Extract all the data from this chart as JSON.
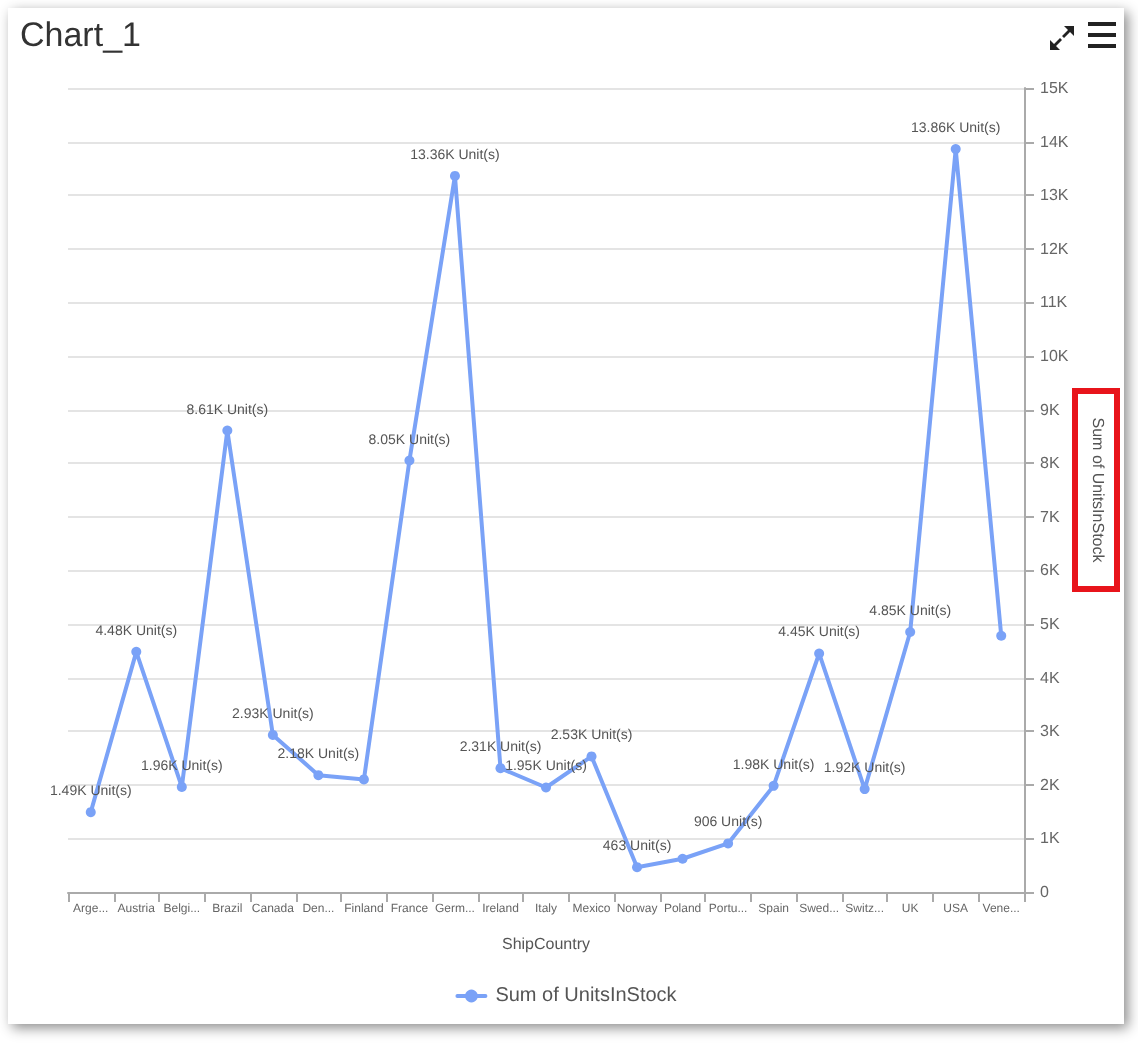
{
  "chart_data": {
    "type": "line",
    "title": "Chart_1",
    "xlabel": "ShipCountry",
    "ylabel": "Sum of UnitsInStock",
    "categories": [
      "Arge...",
      "Austria",
      "Belgi...",
      "Brazil",
      "Canada",
      "Den...",
      "Finland",
      "France",
      "Germ...",
      "Ireland",
      "Italy",
      "Mexico",
      "Norway",
      "Poland",
      "Portu...",
      "Spain",
      "Swed...",
      "Switz...",
      "UK",
      "USA",
      "Vene..."
    ],
    "series": [
      {
        "name": "Sum of UnitsInStock",
        "color": "#7aa2f7",
        "values": [
          1490,
          4480,
          1960,
          8610,
          2930,
          2180,
          2100,
          8050,
          13360,
          2310,
          1950,
          2530,
          463,
          620,
          906,
          1980,
          4450,
          1920,
          4850,
          13860,
          4780
        ],
        "value_labels": [
          "1.49K Unit(s)",
          "4.48K Unit(s)",
          "1.96K Unit(s)",
          "8.61K Unit(s)",
          "2.93K Unit(s)",
          "2.18K Unit(s)",
          null,
          "8.05K Unit(s)",
          "13.36K Unit(s)",
          "2.31K Unit(s)",
          "1.95K Unit(s)",
          "2.53K Unit(s)",
          "463 Unit(s)",
          null,
          "906 Unit(s)",
          "1.98K Unit(s)",
          "4.45K Unit(s)",
          "1.92K Unit(s)",
          "4.85K Unit(s)",
          "13.86K Unit(s)",
          null
        ]
      }
    ],
    "ylim": [
      0,
      15000
    ],
    "yticks": [
      0,
      {
        "value": 1000,
        "label": "1K"
      },
      {
        "value": 2000,
        "label": "2K"
      },
      {
        "value": 3000,
        "label": "3K"
      },
      {
        "value": 4000,
        "label": "4K"
      },
      {
        "value": 5000,
        "label": "5K"
      },
      {
        "value": 6000,
        "label": "6K"
      },
      {
        "value": 7000,
        "label": "7K"
      },
      {
        "value": 8000,
        "label": "8K"
      },
      {
        "value": 9000,
        "label": "9K"
      },
      {
        "value": 10000,
        "label": "10K"
      },
      {
        "value": 11000,
        "label": "11K"
      },
      {
        "value": 12000,
        "label": "12K"
      },
      {
        "value": 13000,
        "label": "13K"
      },
      {
        "value": 14000,
        "label": "14K"
      },
      {
        "value": 15000,
        "label": "15K"
      }
    ],
    "grid": "y",
    "legend": "bottom",
    "marker": "circle",
    "line_style": "solid"
  }
}
